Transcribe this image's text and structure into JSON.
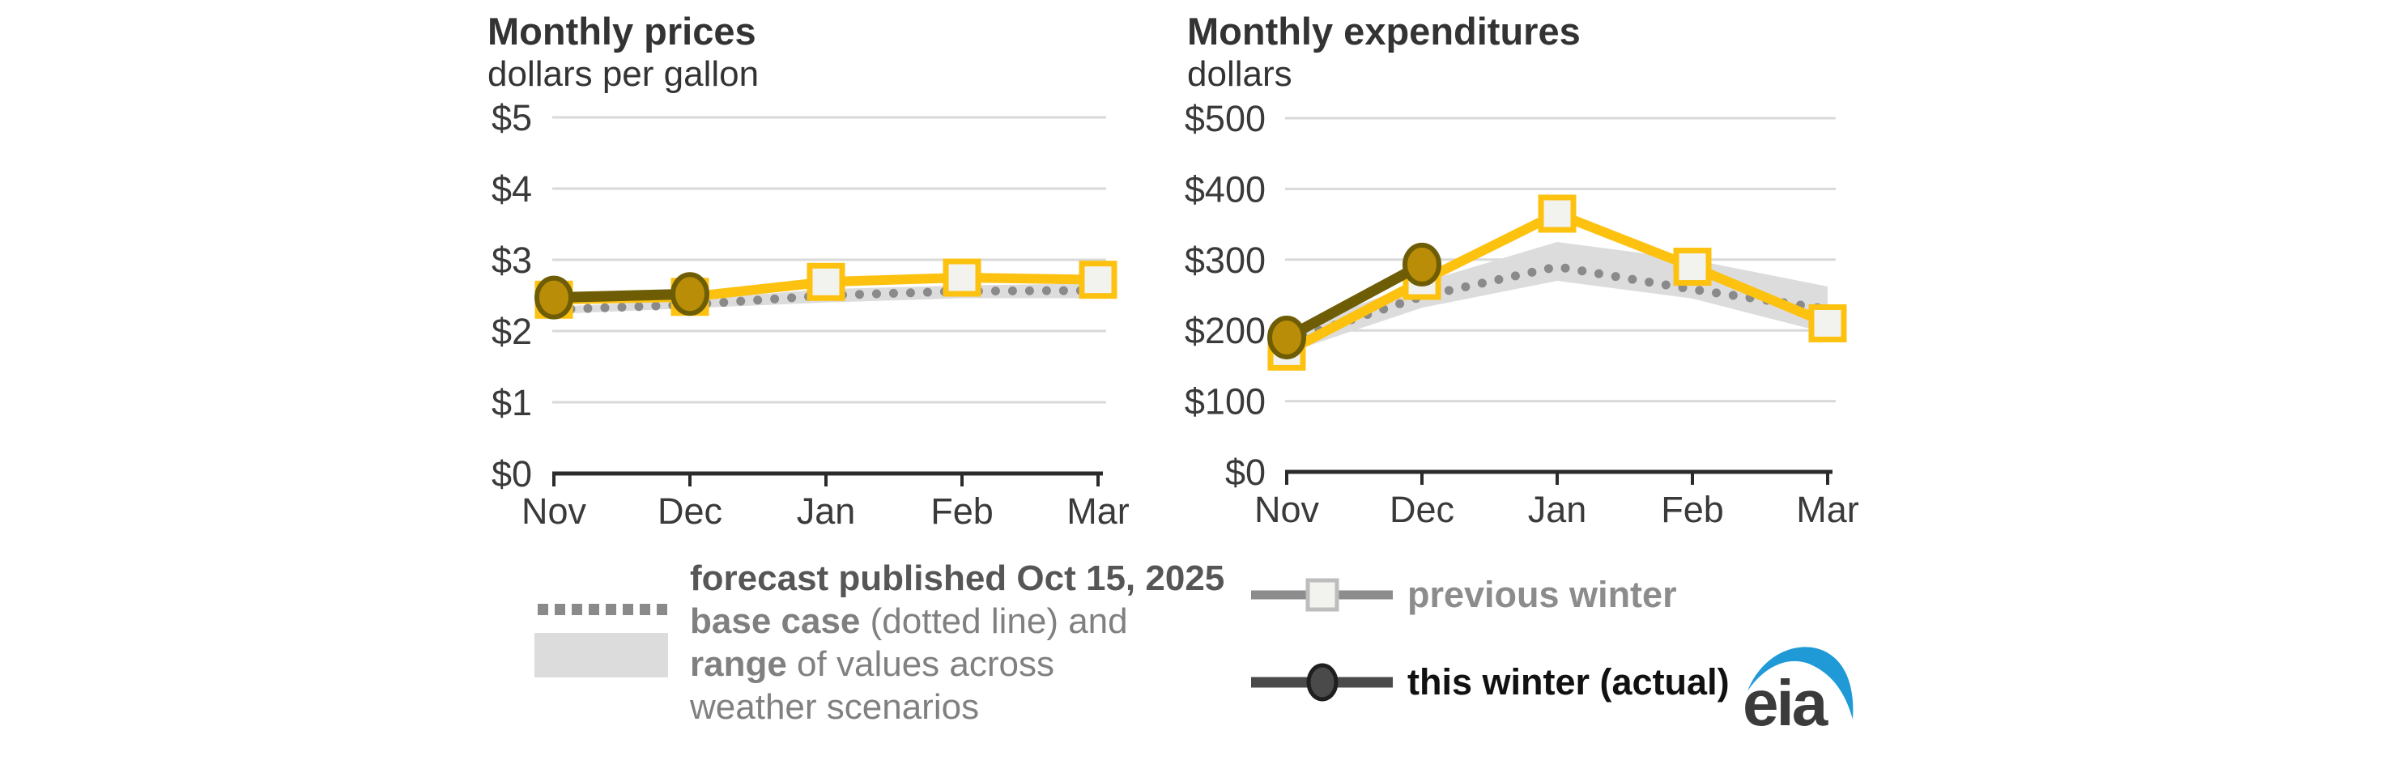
{
  "chart_data": [
    {
      "type": "line",
      "title": "Monthly prices",
      "ylabel": "dollars per gallon",
      "categories": [
        "Nov",
        "Dec",
        "Jan",
        "Feb",
        "Mar"
      ],
      "ylim": [
        0,
        5
      ],
      "grid": true,
      "y_ticks": [
        {
          "label": "$5",
          "value": 5
        },
        {
          "label": "$4",
          "value": 4
        },
        {
          "label": "$3",
          "value": 3
        },
        {
          "label": "$2",
          "value": 2
        },
        {
          "label": "$1",
          "value": 1
        },
        {
          "label": "$0",
          "value": 0
        }
      ],
      "series": {
        "previous_winter": {
          "name": "previous winter",
          "marker": "square",
          "values": [
            2.44,
            2.48,
            2.69,
            2.75,
            2.72
          ]
        },
        "this_winter": {
          "name": "this winter (actual)",
          "marker": "circle",
          "values": [
            2.47,
            2.52
          ]
        },
        "base_case": {
          "name": "base case",
          "style": "dotted",
          "values": [
            2.3,
            2.37,
            2.5,
            2.56,
            2.57
          ]
        },
        "range": {
          "name": "range",
          "upper": [
            2.34,
            2.44,
            2.59,
            2.64,
            2.67
          ],
          "lower": [
            2.24,
            2.32,
            2.4,
            2.46,
            2.46
          ]
        }
      }
    },
    {
      "type": "line",
      "title": "Monthly expenditures",
      "ylabel": "dollars",
      "categories": [
        "Nov",
        "Dec",
        "Jan",
        "Feb",
        "Mar"
      ],
      "ylim": [
        0,
        500
      ],
      "grid": true,
      "y_ticks": [
        {
          "label": "$500",
          "value": 500
        },
        {
          "label": "$400",
          "value": 400
        },
        {
          "label": "$300",
          "value": 300
        },
        {
          "label": "$200",
          "value": 200
        },
        {
          "label": "$100",
          "value": 100
        },
        {
          "label": "$0",
          "value": 0
        }
      ],
      "series": {
        "previous_winter": {
          "name": "previous winter",
          "marker": "square",
          "values": [
            170,
            270,
            365,
            290,
            210
          ]
        },
        "this_winter": {
          "name": "this winter (actual)",
          "marker": "circle",
          "values": [
            190,
            293
          ]
        },
        "base_case": {
          "name": "base case",
          "style": "dotted",
          "values": [
            185,
            248,
            290,
            258,
            230
          ]
        },
        "range": {
          "name": "range",
          "upper": [
            200,
            268,
            325,
            300,
            262
          ],
          "lower": [
            168,
            232,
            270,
            245,
            196
          ]
        }
      }
    }
  ],
  "legend_forecast": {
    "line1": "forecast published Oct 15, 2025",
    "line2_bold": "base case",
    "line2_rest": " (dotted line) and",
    "line3_bold": "range",
    "line3_rest": " of values across",
    "line4": "weather scenarios"
  },
  "legend_series": {
    "previous": "previous winter",
    "current": "this winter (actual)"
  },
  "logo": {
    "text": "eia"
  },
  "colors": {
    "previous_winter": "#FDC110",
    "marker_fill_light": "#F2F2EF",
    "this_winter": "#6E5D04",
    "this_winter_marker_fill": "#B98D07",
    "base_case_dotted": "#8A8A8A",
    "range_band": "#DCDCDC",
    "gridline": "#D9D9D9",
    "axis": "#2B2B2B",
    "text": "#333333",
    "legend_gray_text": "#8C8C8C",
    "legend_prev_line": "#8C8C8C",
    "legend_prev_square_border": "#BDBDBD",
    "legend_this_line": "#4A4A4A",
    "legend_this_border": "#1F1F1F",
    "logo_blue": "#1F9AD7",
    "logo_text": "#3B3B3B"
  }
}
